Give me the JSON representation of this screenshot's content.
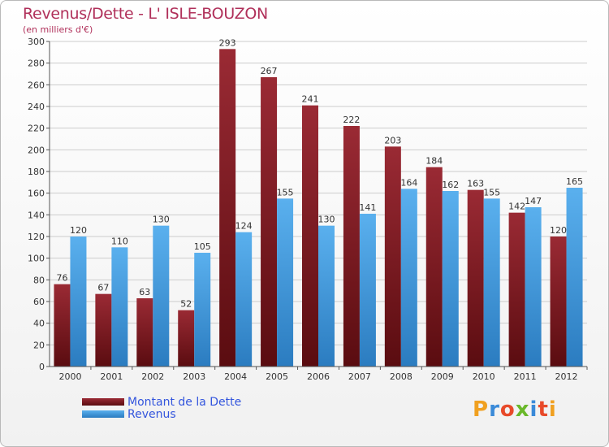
{
  "title": "Revenus/Dette - L' ISLE-BOUZON",
  "subtitle": "(en milliers d'€)",
  "colors": {
    "dette": "#7a1c22",
    "revenus": "#4aa0e0",
    "axis": "#555555",
    "grid": "#cccccc",
    "title": "#b0305a",
    "legend_text": "#3355dd"
  },
  "legend": {
    "dette_label": "Montant de la Dette",
    "revenus_label": "Revenus"
  },
  "logo": {
    "text": "Proxiti"
  },
  "chart_data": {
    "type": "bar",
    "title": "Revenus/Dette - L' ISLE-BOUZON",
    "subtitle": "(en milliers d'€)",
    "xlabel": "",
    "ylabel": "",
    "ylim": [
      0,
      300
    ],
    "yticks": [
      0,
      20,
      40,
      60,
      80,
      100,
      120,
      140,
      160,
      180,
      200,
      220,
      240,
      260,
      280,
      300
    ],
    "grid": true,
    "legend_position": "bottom-left",
    "categories": [
      "2000",
      "2001",
      "2002",
      "2003",
      "2004",
      "2005",
      "2006",
      "2007",
      "2008",
      "2009",
      "2010",
      "2011",
      "2012"
    ],
    "series": [
      {
        "name": "Montant de la Dette",
        "color": "#7a1c22",
        "values": [
          76,
          67,
          63,
          52,
          293,
          267,
          241,
          222,
          203,
          184,
          163,
          142,
          120
        ]
      },
      {
        "name": "Revenus",
        "color": "#4aa0e0",
        "values": [
          120,
          110,
          130,
          105,
          124,
          155,
          130,
          141,
          164,
          162,
          155,
          147,
          165
        ]
      }
    ]
  }
}
